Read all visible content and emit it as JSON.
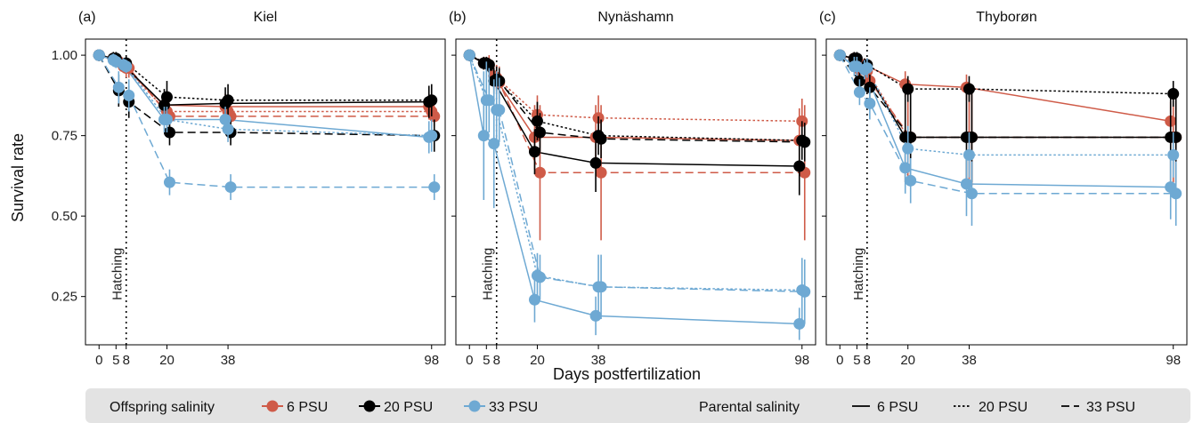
{
  "figure": {
    "y_axis_label": "Survival rate",
    "x_axis_label": "Days postfertilization",
    "hatching_label": "Hatching"
  },
  "legend": {
    "offspring_title": "Offspring salinity",
    "offspring_items": [
      "6 PSU",
      "20 PSU",
      "33 PSU"
    ],
    "parental_title": "Parental salinity",
    "parental_items": [
      "6 PSU",
      "20 PSU",
      "33 PSU"
    ]
  },
  "chart_data": [
    {
      "type": "line",
      "panel_tag": "(a)",
      "title": "Kiel",
      "x_ticks": [
        0,
        5,
        8,
        20,
        38,
        98
      ],
      "y_ticks": [
        0.25,
        0.5,
        0.75,
        1.0
      ],
      "y_tick_labels": [
        "0.25",
        "0.50",
        "0.75",
        "1.00"
      ],
      "xlim": [
        -4,
        102
      ],
      "ylim": [
        0.1,
        1.05
      ],
      "hatching_day": 8,
      "offspring_colors": {
        "6 PSU": "#cf5b48",
        "20 PSU": "#000000",
        "33 PSU": "#6ea9d3"
      },
      "series": [
        {
          "offspring": "6 PSU",
          "parental": "6 PSU",
          "x": [
            0,
            5,
            8,
            20,
            38,
            98
          ],
          "y": [
            1.0,
            0.99,
            0.965,
            0.845,
            0.84,
            0.84
          ],
          "err": [
            0.01,
            0.02,
            0.02,
            0.03,
            0.04,
            0.04
          ]
        },
        {
          "offspring": "6 PSU",
          "parental": "20 PSU",
          "x": [
            0,
            5,
            8,
            20,
            38,
            98
          ],
          "y": [
            1.0,
            0.985,
            0.96,
            0.825,
            0.825,
            0.825
          ],
          "err": [
            0.01,
            0.02,
            0.03,
            0.03,
            0.03,
            0.03
          ]
        },
        {
          "offspring": "6 PSU",
          "parental": "33 PSU",
          "x": [
            0,
            5,
            8,
            20,
            38,
            98
          ],
          "y": [
            1.0,
            0.98,
            0.96,
            0.81,
            0.81,
            0.81
          ],
          "err": [
            0.01,
            0.02,
            0.03,
            0.03,
            0.03,
            0.03
          ]
        },
        {
          "offspring": "20 PSU",
          "parental": "6 PSU",
          "x": [
            0,
            5,
            8,
            20,
            38,
            98
          ],
          "y": [
            1.0,
            0.99,
            0.97,
            0.845,
            0.85,
            0.855
          ],
          "err": [
            0.01,
            0.02,
            0.02,
            0.05,
            0.05,
            0.05
          ]
        },
        {
          "offspring": "20 PSU",
          "parental": "20 PSU",
          "x": [
            0,
            5,
            8,
            20,
            38,
            98
          ],
          "y": [
            1.0,
            0.99,
            0.975,
            0.87,
            0.86,
            0.86
          ],
          "err": [
            0.01,
            0.02,
            0.02,
            0.05,
            0.05,
            0.05
          ]
        },
        {
          "offspring": "20 PSU",
          "parental": "33 PSU",
          "x": [
            0,
            5,
            8,
            20,
            38,
            98
          ],
          "y": [
            1.0,
            0.89,
            0.855,
            0.76,
            0.76,
            0.75
          ],
          "err": [
            0.01,
            0.05,
            0.05,
            0.04,
            0.04,
            0.05
          ]
        },
        {
          "offspring": "33 PSU",
          "parental": "6 PSU",
          "x": [
            0,
            5,
            8,
            20,
            38,
            98
          ],
          "y": [
            1.0,
            0.985,
            0.97,
            0.8,
            0.8,
            0.745
          ],
          "err": [
            0.01,
            0.02,
            0.02,
            0.04,
            0.04,
            0.05
          ]
        },
        {
          "offspring": "33 PSU",
          "parental": "20 PSU",
          "x": [
            0,
            5,
            8,
            20,
            38,
            98
          ],
          "y": [
            1.0,
            0.98,
            0.965,
            0.8,
            0.77,
            0.75
          ],
          "err": [
            0.01,
            0.02,
            0.02,
            0.04,
            0.04,
            0.05
          ]
        },
        {
          "offspring": "33 PSU",
          "parental": "33 PSU",
          "x": [
            0,
            5,
            8,
            20,
            38,
            98
          ],
          "y": [
            1.0,
            0.9,
            0.875,
            0.605,
            0.59,
            0.59
          ],
          "err": [
            0.01,
            0.05,
            0.05,
            0.04,
            0.04,
            0.04
          ]
        }
      ]
    },
    {
      "type": "line",
      "panel_tag": "(b)",
      "title": "Nynäshamn",
      "x_ticks": [
        0,
        5,
        8,
        20,
        38,
        98
      ],
      "y_ticks": [
        0.25,
        0.5,
        0.75,
        1.0
      ],
      "y_tick_labels": [
        "0.25",
        "0.50",
        "0.75",
        "1.00"
      ],
      "xlim": [
        -4,
        102
      ],
      "ylim": [
        0.1,
        1.05
      ],
      "hatching_day": 8,
      "offspring_colors": {
        "6 PSU": "#cf5b48",
        "20 PSU": "#000000",
        "33 PSU": "#6ea9d3"
      },
      "series": [
        {
          "offspring": "6 PSU",
          "parental": "6 PSU",
          "x": [
            0,
            5,
            8,
            20,
            38,
            98
          ],
          "y": [
            1.0,
            0.975,
            0.935,
            0.745,
            0.745,
            0.735
          ],
          "err": [
            0.01,
            0.02,
            0.04,
            0.1,
            0.1,
            0.1
          ]
        },
        {
          "offspring": "6 PSU",
          "parental": "20 PSU",
          "x": [
            0,
            5,
            8,
            20,
            38,
            98
          ],
          "y": [
            1.0,
            0.975,
            0.93,
            0.815,
            0.805,
            0.795
          ],
          "err": [
            0.01,
            0.02,
            0.04,
            0.06,
            0.07,
            0.07
          ]
        },
        {
          "offspring": "6 PSU",
          "parental": "33 PSU",
          "x": [
            0,
            5,
            8,
            20,
            38,
            98
          ],
          "y": [
            1.0,
            0.97,
            0.915,
            0.635,
            0.635,
            0.635
          ],
          "err": [
            0.01,
            0.03,
            0.05,
            0.21,
            0.21,
            0.21
          ]
        },
        {
          "offspring": "20 PSU",
          "parental": "6 PSU",
          "x": [
            0,
            5,
            8,
            20,
            38,
            98
          ],
          "y": [
            1.0,
            0.975,
            0.92,
            0.7,
            0.665,
            0.655
          ],
          "err": [
            0.01,
            0.02,
            0.04,
            0.07,
            0.09,
            0.09
          ]
        },
        {
          "offspring": "20 PSU",
          "parental": "20 PSU",
          "x": [
            0,
            5,
            8,
            20,
            38,
            98
          ],
          "y": [
            1.0,
            0.975,
            0.925,
            0.795,
            0.75,
            0.735
          ],
          "err": [
            0.01,
            0.02,
            0.04,
            0.06,
            0.06,
            0.06
          ]
        },
        {
          "offspring": "20 PSU",
          "parental": "33 PSU",
          "x": [
            0,
            5,
            8,
            20,
            38,
            98
          ],
          "y": [
            1.0,
            0.97,
            0.92,
            0.76,
            0.74,
            0.73
          ],
          "err": [
            0.01,
            0.02,
            0.04,
            0.06,
            0.06,
            0.06
          ]
        },
        {
          "offspring": "33 PSU",
          "parental": "6 PSU",
          "x": [
            0,
            5,
            8,
            20,
            38,
            98
          ],
          "y": [
            1.0,
            0.75,
            0.725,
            0.24,
            0.19,
            0.165
          ],
          "err": [
            0.01,
            0.2,
            0.2,
            0.07,
            0.06,
            0.05
          ]
        },
        {
          "offspring": "33 PSU",
          "parental": "20 PSU",
          "x": [
            0,
            5,
            8,
            20,
            38,
            98
          ],
          "y": [
            1.0,
            0.86,
            0.83,
            0.315,
            0.28,
            0.27
          ],
          "err": [
            0.01,
            0.12,
            0.12,
            0.07,
            0.1,
            0.1
          ]
        },
        {
          "offspring": "33 PSU",
          "parental": "33 PSU",
          "x": [
            0,
            5,
            8,
            20,
            38,
            98
          ],
          "y": [
            1.0,
            0.86,
            0.83,
            0.31,
            0.28,
            0.265
          ],
          "err": [
            0.01,
            0.1,
            0.1,
            0.07,
            0.1,
            0.1
          ]
        }
      ]
    },
    {
      "type": "line",
      "panel_tag": "(c)",
      "title": "Thyborøn",
      "x_ticks": [
        0,
        5,
        8,
        20,
        38,
        98
      ],
      "y_ticks": [
        0.25,
        0.5,
        0.75,
        1.0
      ],
      "y_tick_labels": [
        "0.25",
        "0.50",
        "0.75",
        "1.00"
      ],
      "xlim": [
        -4,
        102
      ],
      "ylim": [
        0.1,
        1.05
      ],
      "hatching_day": 8,
      "offspring_colors": {
        "6 PSU": "#cf5b48",
        "20 PSU": "#000000",
        "33 PSU": "#6ea9d3"
      },
      "series": [
        {
          "offspring": "6 PSU",
          "parental": "6 PSU",
          "x": [
            0,
            5,
            8,
            20,
            38,
            98
          ],
          "y": [
            1.0,
            0.99,
            0.97,
            0.91,
            0.9,
            0.795
          ],
          "err": [
            0.01,
            0.02,
            0.02,
            0.04,
            0.04,
            0.06
          ]
        },
        {
          "offspring": "6 PSU",
          "parental": "20 PSU",
          "x": [
            0,
            5,
            8,
            20,
            38,
            98
          ],
          "y": [
            1.0,
            0.98,
            0.95,
            0.745,
            0.745,
            0.745
          ],
          "err": [
            0.01,
            0.02,
            0.03,
            0.14,
            0.14,
            0.14
          ]
        },
        {
          "offspring": "6 PSU",
          "parental": "33 PSU",
          "x": [
            0,
            5,
            8,
            20,
            38,
            98
          ],
          "y": [
            1.0,
            0.955,
            0.92,
            0.745,
            0.745,
            0.745
          ],
          "err": [
            0.01,
            0.03,
            0.04,
            0.15,
            0.15,
            0.15
          ]
        },
        {
          "offspring": "20 PSU",
          "parental": "6 PSU",
          "x": [
            0,
            5,
            8,
            20,
            38,
            98
          ],
          "y": [
            1.0,
            0.99,
            0.96,
            0.745,
            0.745,
            0.745
          ],
          "err": [
            0.01,
            0.02,
            0.03,
            0.14,
            0.14,
            0.14
          ]
        },
        {
          "offspring": "20 PSU",
          "parental": "20 PSU",
          "x": [
            0,
            5,
            8,
            20,
            38,
            98
          ],
          "y": [
            1.0,
            0.99,
            0.97,
            0.895,
            0.895,
            0.88
          ],
          "err": [
            0.01,
            0.02,
            0.02,
            0.04,
            0.04,
            0.04
          ]
        },
        {
          "offspring": "20 PSU",
          "parental": "33 PSU",
          "x": [
            0,
            5,
            8,
            20,
            38,
            98
          ],
          "y": [
            1.0,
            0.92,
            0.9,
            0.745,
            0.745,
            0.745
          ],
          "err": [
            0.01,
            0.03,
            0.04,
            0.14,
            0.14,
            0.14
          ]
        },
        {
          "offspring": "33 PSU",
          "parental": "6 PSU",
          "x": [
            0,
            5,
            8,
            20,
            38,
            98
          ],
          "y": [
            1.0,
            0.965,
            0.955,
            0.65,
            0.6,
            0.59
          ],
          "err": [
            0.01,
            0.03,
            0.03,
            0.08,
            0.1,
            0.1
          ]
        },
        {
          "offspring": "33 PSU",
          "parental": "20 PSU",
          "x": [
            0,
            5,
            8,
            20,
            38,
            98
          ],
          "y": [
            1.0,
            0.965,
            0.96,
            0.71,
            0.69,
            0.69
          ],
          "err": [
            0.01,
            0.03,
            0.03,
            0.07,
            0.07,
            0.07
          ]
        },
        {
          "offspring": "33 PSU",
          "parental": "33 PSU",
          "x": [
            0,
            5,
            8,
            20,
            38,
            98
          ],
          "y": [
            1.0,
            0.885,
            0.85,
            0.61,
            0.57,
            0.57
          ],
          "err": [
            0.01,
            0.04,
            0.05,
            0.07,
            0.1,
            0.1
          ]
        }
      ]
    }
  ]
}
